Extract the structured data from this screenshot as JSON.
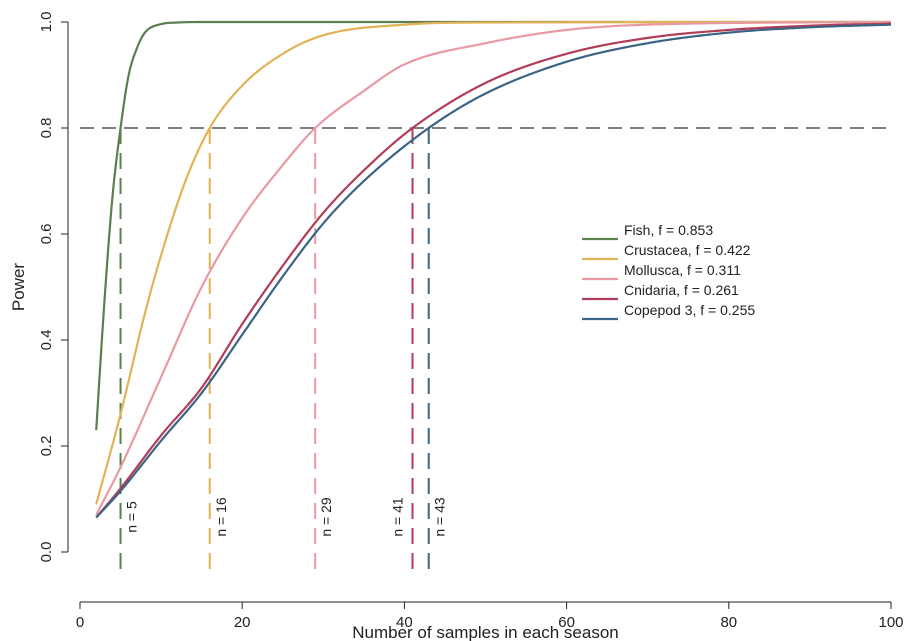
{
  "chart_data": {
    "type": "line",
    "xlabel": "Number of samples in each season",
    "ylabel": "Power",
    "xlim": [
      0,
      100
    ],
    "ylim": [
      0,
      1
    ],
    "xticks": [
      "0",
      "20",
      "40",
      "60",
      "80",
      "100"
    ],
    "yticks": [
      "0.0",
      "0.2",
      "0.4",
      "0.6",
      "0.8",
      "1.0"
    ],
    "grid": false,
    "legend_position": "right",
    "threshold": {
      "y": 0.8,
      "style": "dashed",
      "color": "#333333"
    },
    "series": [
      {
        "name": "Fish, f = 0.853",
        "color": "#5b7f4d",
        "n_required": 5,
        "annotation": "n = 5",
        "x": [
          2,
          3,
          4,
          5,
          6,
          7,
          8,
          10,
          12,
          15,
          20,
          100
        ],
        "y": [
          0.23,
          0.47,
          0.67,
          0.8,
          0.9,
          0.95,
          0.98,
          0.996,
          0.999,
          1.0,
          1.0,
          1.0
        ]
      },
      {
        "name": "Crustacea, f = 0.422",
        "color": "#e2b356",
        "n_required": 16,
        "annotation": "n = 16",
        "x": [
          2,
          5,
          8,
          10,
          13,
          16,
          20,
          25,
          30,
          40,
          50,
          100
        ],
        "y": [
          0.09,
          0.26,
          0.45,
          0.56,
          0.7,
          0.8,
          0.88,
          0.94,
          0.975,
          0.995,
          0.999,
          1.0
        ]
      },
      {
        "name": "Mollusca, f = 0.311",
        "color": "#e89aa3",
        "n_required": 29,
        "annotation": "n = 29",
        "x": [
          2,
          5,
          10,
          15,
          20,
          25,
          29,
          35,
          40,
          50,
          60,
          70,
          100
        ],
        "y": [
          0.07,
          0.16,
          0.33,
          0.5,
          0.63,
          0.73,
          0.8,
          0.87,
          0.92,
          0.96,
          0.985,
          0.995,
          1.0
        ]
      },
      {
        "name": "Cnidaria, f = 0.261",
        "color": "#b23d58",
        "n_required": 41,
        "annotation": "n = 41",
        "x": [
          2,
          5,
          10,
          15,
          20,
          25,
          30,
          35,
          41,
          50,
          60,
          70,
          80,
          90,
          100
        ],
        "y": [
          0.065,
          0.12,
          0.22,
          0.31,
          0.43,
          0.54,
          0.64,
          0.72,
          0.8,
          0.885,
          0.94,
          0.97,
          0.985,
          0.993,
          0.997
        ]
      },
      {
        "name": "Copepod 3, f = 0.255",
        "color": "#3b6486",
        "n_required": 43,
        "annotation": "n = 43",
        "x": [
          2,
          5,
          10,
          15,
          20,
          25,
          30,
          35,
          43,
          50,
          60,
          70,
          80,
          90,
          100
        ],
        "y": [
          0.065,
          0.115,
          0.21,
          0.3,
          0.41,
          0.52,
          0.62,
          0.7,
          0.8,
          0.865,
          0.925,
          0.96,
          0.98,
          0.99,
          0.995
        ]
      }
    ]
  }
}
